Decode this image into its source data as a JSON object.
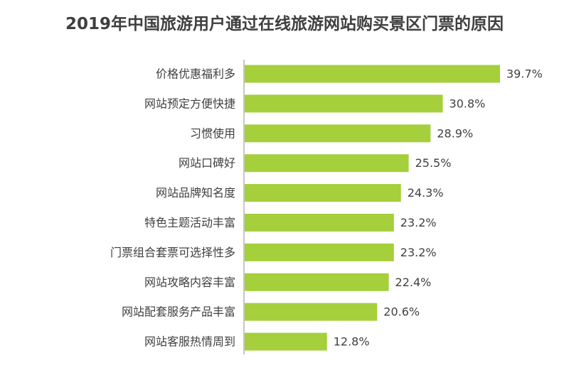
{
  "chart_data": {
    "type": "bar",
    "orientation": "horizontal",
    "title": "2019年中国旅游用户通过在线旅游网站购买景区门票的原因",
    "categories": [
      "价格优惠福利多",
      "网站预定方便快捷",
      "习惯使用",
      "网站口碑好",
      "网站品牌知名度",
      "特色主题活动丰富",
      "门票组合套票可选择性多",
      "网站攻略内容丰富",
      "网站配套服务产品丰富",
      "网站客服热情周到"
    ],
    "values": [
      39.7,
      30.8,
      28.9,
      25.5,
      24.3,
      23.2,
      23.2,
      22.4,
      20.6,
      12.8
    ],
    "value_labels": [
      "39.7%",
      "30.8%",
      "28.9%",
      "25.5%",
      "24.3%",
      "23.2%",
      "23.2%",
      "22.4%",
      "20.6%",
      "12.8%"
    ],
    "bar_color": "#a5cf3b",
    "axis_color": "#8c8c8c",
    "text_color": "#404040",
    "title_color": "#3f3f3f",
    "xlim": [
      0,
      39.7
    ],
    "grid": false,
    "legend": "none"
  }
}
